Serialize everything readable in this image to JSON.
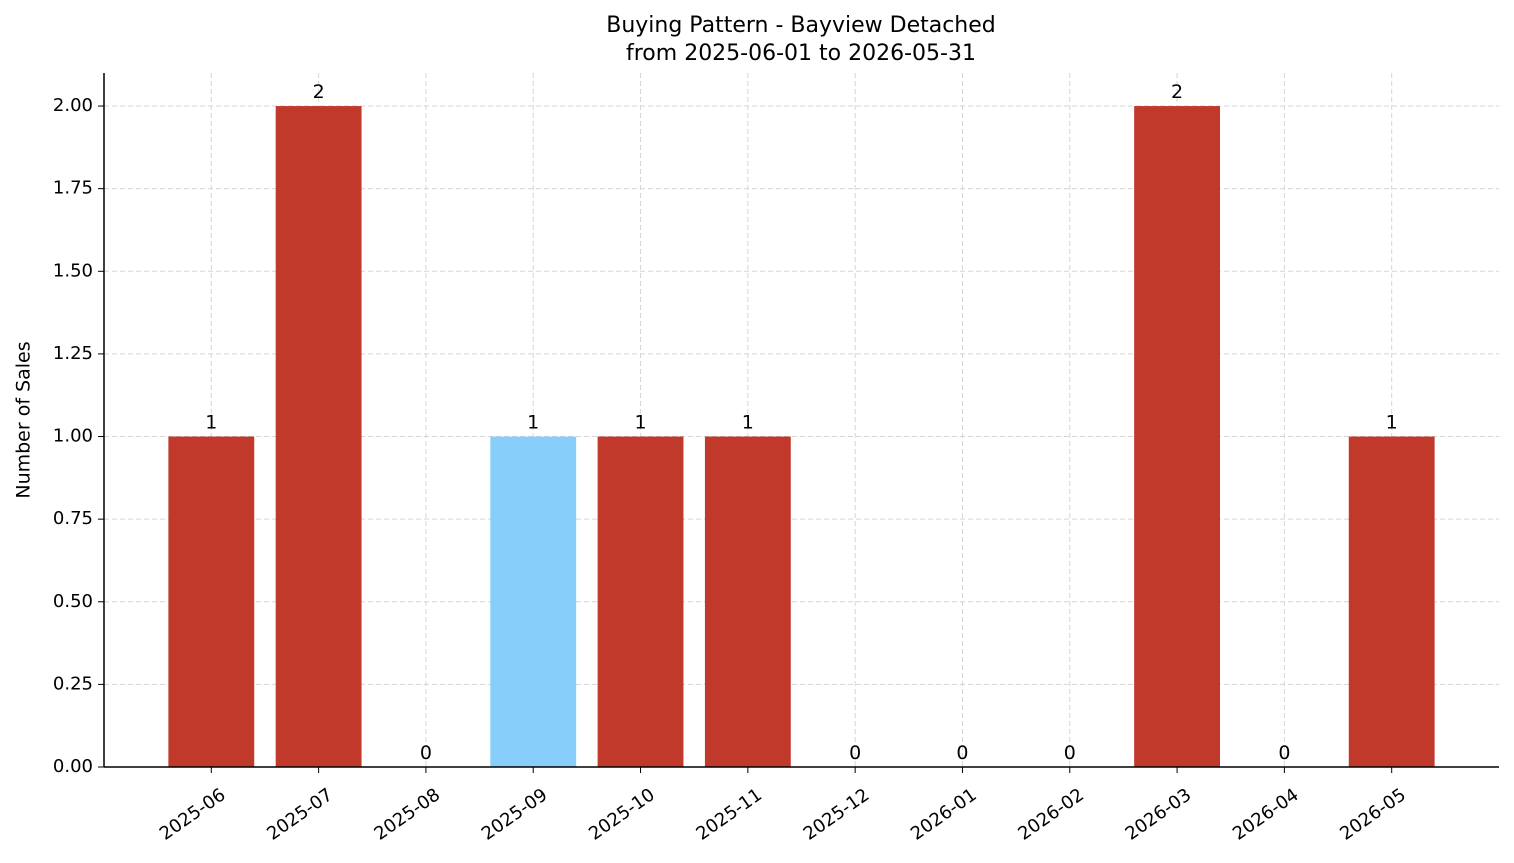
{
  "chart_data": {
    "type": "bar",
    "title": "Buying Pattern - Bayview Detached",
    "subtitle": "from 2025-06-01 to 2026-05-31",
    "y_label": "Number of Sales",
    "categories": [
      "2025-06",
      "2025-07",
      "2025-08",
      "2025-09",
      "2025-10",
      "2025-11",
      "2025-12",
      "2026-01",
      "2026-02",
      "2026-03",
      "2026-04",
      "2026-05"
    ],
    "values": [
      1,
      2,
      0,
      1,
      1,
      1,
      0,
      0,
      0,
      2,
      0,
      1
    ],
    "colors": [
      "#c0392b",
      "#c0392b",
      "#c0392b",
      "#87cefa",
      "#c0392b",
      "#c0392b",
      "#c0392b",
      "#c0392b",
      "#c0392b",
      "#c0392b",
      "#c0392b",
      "#c0392b"
    ],
    "ylim": [
      0,
      2.1
    ],
    "yticks": [
      {
        "value": 0,
        "label": "0.00"
      },
      {
        "value": 0.25,
        "label": "0.25"
      },
      {
        "value": 0.5,
        "label": "0.50"
      },
      {
        "value": 0.75,
        "label": "0.75"
      },
      {
        "value": 1,
        "label": "1.00"
      },
      {
        "value": 1.25,
        "label": "1.25"
      },
      {
        "value": 1.5,
        "label": "1.50"
      },
      {
        "value": 1.75,
        "label": "1.75"
      },
      {
        "value": 2,
        "label": "2.00"
      }
    ],
    "grid": true
  }
}
